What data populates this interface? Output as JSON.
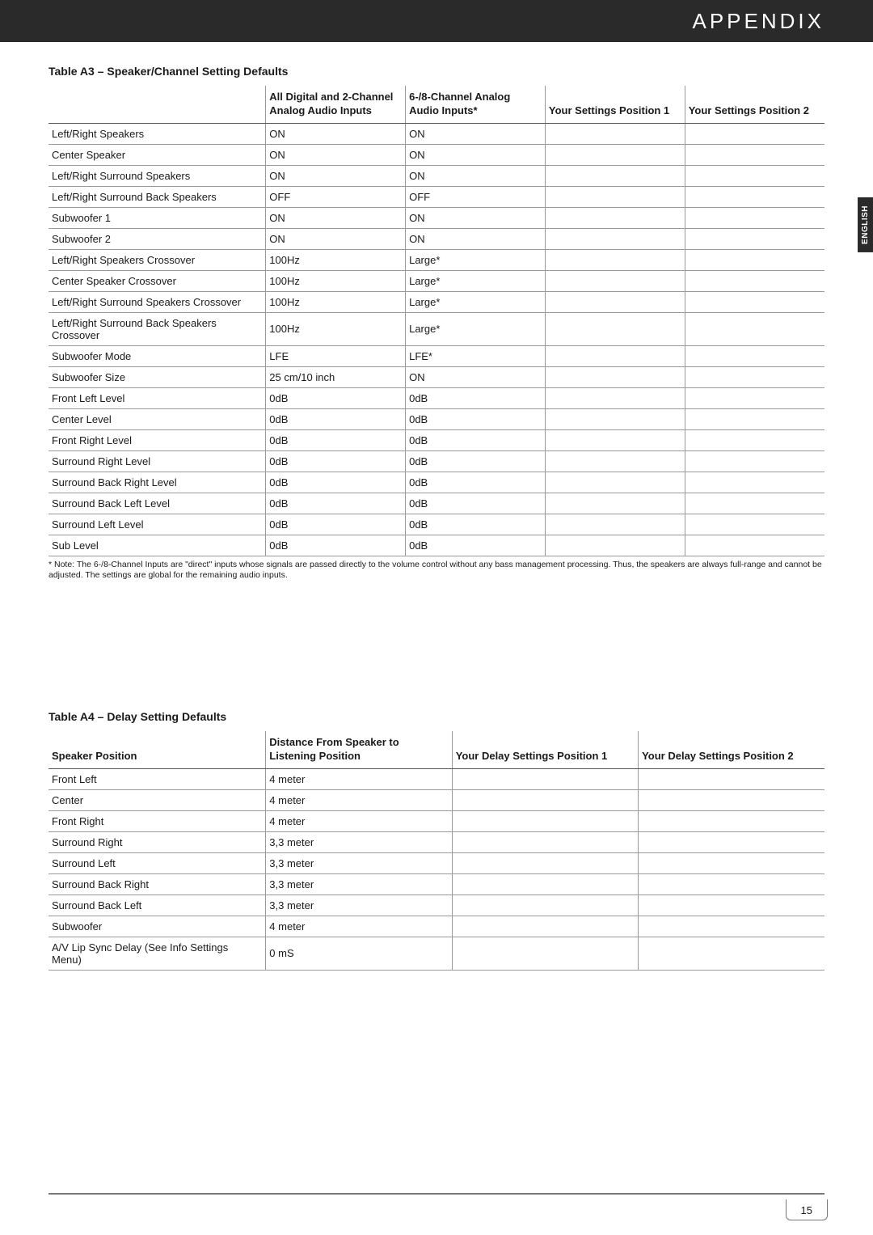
{
  "header": "APPENDIX",
  "side_tab": "ENGLISH",
  "page_number": "15",
  "table_a3": {
    "title": "Table A3 – Speaker/Channel Setting Defaults",
    "columns": [
      "",
      "All Digital and 2-Channel Analog Audio Inputs",
      "6-/8-Channel Analog Audio Inputs*",
      "Your Settings Position 1",
      "Your Settings Position 2"
    ],
    "rows": [
      [
        "Left/Right Speakers",
        "ON",
        "ON",
        "",
        ""
      ],
      [
        "Center Speaker",
        "ON",
        "ON",
        "",
        ""
      ],
      [
        "Left/Right Surround Speakers",
        "ON",
        "ON",
        "",
        ""
      ],
      [
        "Left/Right Surround Back Speakers",
        "OFF",
        "OFF",
        "",
        ""
      ],
      [
        "Subwoofer 1",
        "ON",
        "ON",
        "",
        ""
      ],
      [
        "Subwoofer 2",
        "ON",
        "ON",
        "",
        ""
      ],
      [
        "Left/Right Speakers Crossover",
        "100Hz",
        "Large*",
        "",
        ""
      ],
      [
        "Center Speaker Crossover",
        "100Hz",
        "Large*",
        "",
        ""
      ],
      [
        "Left/Right Surround Speakers Crossover",
        "100Hz",
        "Large*",
        "",
        ""
      ],
      [
        "Left/Right Surround Back Speakers Crossover",
        "100Hz",
        "Large*",
        "",
        ""
      ],
      [
        "Subwoofer Mode",
        "LFE",
        "LFE*",
        "",
        ""
      ],
      [
        "Subwoofer Size",
        "25 cm/10 inch",
        "ON",
        "",
        ""
      ],
      [
        "Front Left Level",
        "0dB",
        "0dB",
        "",
        ""
      ],
      [
        "Center Level",
        "0dB",
        "0dB",
        "",
        ""
      ],
      [
        "Front Right Level",
        "0dB",
        "0dB",
        "",
        ""
      ],
      [
        "Surround Right Level",
        "0dB",
        "0dB",
        "",
        ""
      ],
      [
        "Surround Back Right Level",
        "0dB",
        "0dB",
        "",
        ""
      ],
      [
        "Surround Back Left Level",
        "0dB",
        "0dB",
        "",
        ""
      ],
      [
        "Surround Left Level",
        "0dB",
        "0dB",
        "",
        ""
      ],
      [
        "Sub Level",
        "0dB",
        "0dB",
        "",
        ""
      ]
    ],
    "footnote": "* Note: The 6-/8-Channel Inputs are \"direct\" inputs whose signals are passed directly to the volume control without any bass management processing. Thus, the speakers are always full-range and cannot be adjusted. The settings are global for the remaining audio inputs."
  },
  "table_a4": {
    "title": "Table A4 – Delay Setting Defaults",
    "columns": [
      "Speaker Position",
      "Distance From Speaker to Listening Position",
      "Your Delay Settings Position 1",
      "Your Delay Settings Position 2"
    ],
    "rows": [
      [
        "Front Left",
        "4 meter",
        "",
        ""
      ],
      [
        "Center",
        "4 meter",
        "",
        ""
      ],
      [
        "Front Right",
        "4 meter",
        "",
        ""
      ],
      [
        "Surround Right",
        "3,3 meter",
        "",
        ""
      ],
      [
        "Surround Left",
        "3,3 meter",
        "",
        ""
      ],
      [
        "Surround Back Right",
        "3,3 meter",
        "",
        ""
      ],
      [
        "Surround Back Left",
        "3,3 meter",
        "",
        ""
      ],
      [
        "Subwoofer",
        "4 meter",
        "",
        ""
      ],
      [
        "A/V Lip Sync Delay (See Info Settings Menu)",
        "0 mS",
        "",
        ""
      ]
    ]
  }
}
